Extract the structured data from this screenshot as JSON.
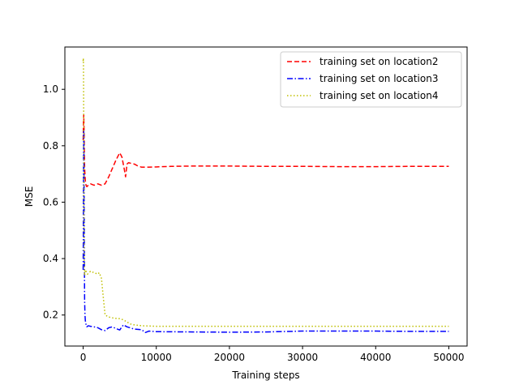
{
  "chart_data": {
    "type": "line",
    "xlabel": "Training steps",
    "ylabel": "MSE",
    "xlim": [
      -2500,
      52500
    ],
    "ylim": [
      0.09,
      1.15
    ],
    "x_ticks": [
      0,
      10000,
      20000,
      30000,
      40000,
      50000
    ],
    "y_ticks": [
      0.2,
      0.4,
      0.6,
      0.8,
      1.0
    ],
    "x_tick_labels": [
      "0",
      "10000",
      "20000",
      "30000",
      "40000",
      "50000"
    ],
    "y_tick_labels": [
      "0.2",
      "0.4",
      "0.6",
      "0.8",
      "1.0"
    ],
    "grid": false,
    "legend_position": "upper right",
    "series": [
      {
        "name": "training set on location2",
        "color": "#ff0000",
        "style": "dashed",
        "x": [
          0,
          40,
          80,
          120,
          160,
          200,
          260,
          320,
          400,
          500,
          700,
          1000,
          1500,
          2000,
          2500,
          3000,
          3500,
          4000,
          4500,
          5000,
          5300,
          5600,
          5800,
          6000,
          6200,
          6500,
          7000,
          7500,
          8000,
          9000,
          10000,
          12000,
          15000,
          20000,
          25000,
          30000,
          35000,
          40000,
          45000,
          50000
        ],
        "y": [
          0.82,
          0.88,
          0.91,
          0.86,
          0.78,
          0.72,
          0.69,
          0.67,
          0.66,
          0.655,
          0.66,
          0.665,
          0.66,
          0.665,
          0.66,
          0.665,
          0.69,
          0.72,
          0.75,
          0.775,
          0.76,
          0.72,
          0.69,
          0.735,
          0.74,
          0.738,
          0.735,
          0.728,
          0.724,
          0.724,
          0.725,
          0.727,
          0.728,
          0.728,
          0.727,
          0.727,
          0.726,
          0.726,
          0.727,
          0.727
        ]
      },
      {
        "name": "training set on location3",
        "color": "#0000ff",
        "style": "dashdot",
        "x": [
          0,
          20,
          40,
          60,
          80,
          100,
          130,
          160,
          200,
          250,
          300,
          400,
          500,
          700,
          1000,
          1500,
          2000,
          2500,
          3000,
          3500,
          4000,
          4500,
          5000,
          5500,
          6000,
          7000,
          8000,
          8500,
          9000,
          10000,
          15000,
          20000,
          25000,
          30000,
          35000,
          40000,
          45000,
          50000
        ],
        "y": [
          0.36,
          0.45,
          0.62,
          0.78,
          0.86,
          0.8,
          0.6,
          0.42,
          0.25,
          0.2,
          0.18,
          0.165,
          0.158,
          0.162,
          0.16,
          0.158,
          0.155,
          0.148,
          0.145,
          0.155,
          0.158,
          0.152,
          0.147,
          0.165,
          0.158,
          0.15,
          0.148,
          0.138,
          0.143,
          0.141,
          0.14,
          0.139,
          0.14,
          0.143,
          0.143,
          0.143,
          0.142,
          0.142
        ]
      },
      {
        "name": "training set on location4",
        "color": "#bfbf00",
        "style": "dotted",
        "x": [
          0,
          20,
          40,
          60,
          80,
          100,
          120,
          150,
          200,
          250,
          300,
          400,
          600,
          800,
          1000,
          1500,
          2000,
          2200,
          2500,
          2800,
          3000,
          3500,
          4000,
          4500,
          5000,
          5500,
          6000,
          6500,
          7000,
          8000,
          10000,
          15000,
          20000,
          30000,
          40000,
          50000
        ],
        "y": [
          1.1,
          1.11,
          1.09,
          1.0,
          0.85,
          0.6,
          0.45,
          0.38,
          0.34,
          0.35,
          0.36,
          0.355,
          0.345,
          0.35,
          0.355,
          0.35,
          0.345,
          0.35,
          0.33,
          0.25,
          0.2,
          0.193,
          0.19,
          0.188,
          0.187,
          0.183,
          0.175,
          0.168,
          0.165,
          0.162,
          0.16,
          0.16,
          0.16,
          0.16,
          0.16,
          0.16
        ]
      }
    ]
  }
}
